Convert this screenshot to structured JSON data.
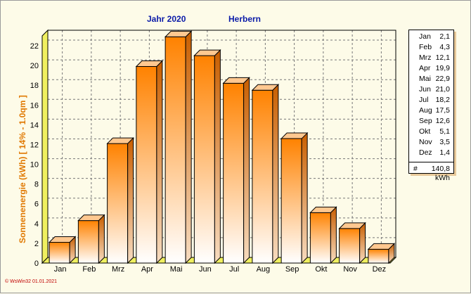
{
  "chart_data": {
    "type": "bar",
    "title": "Jahr  2020",
    "subtitle": "Herbern",
    "ylabel": "Sonnenenergie  (kWh)     [ 14% - 1.0qm ]",
    "categories": [
      "Jan",
      "Feb",
      "Mrz",
      "Apr",
      "Mai",
      "Jun",
      "Jul",
      "Aug",
      "Sep",
      "Okt",
      "Nov",
      "Dez"
    ],
    "values": [
      2.1,
      4.3,
      12.1,
      19.9,
      22.9,
      21.0,
      18.2,
      17.5,
      12.6,
      5.1,
      3.5,
      1.4
    ],
    "ylim": [
      0,
      23
    ],
    "yticks": [
      0,
      2,
      4,
      6,
      8,
      10,
      12,
      14,
      16,
      18,
      20,
      22
    ],
    "grid": true,
    "legend_placement": "right"
  },
  "legend": {
    "rows": [
      {
        "month": "Jan",
        "value": "2,1"
      },
      {
        "month": "Feb",
        "value": "4,3"
      },
      {
        "month": "Mrz",
        "value": "12,1"
      },
      {
        "month": "Apr",
        "value": "19,9"
      },
      {
        "month": "Mai",
        "value": "22,9"
      },
      {
        "month": "Jun",
        "value": "21,0"
      },
      {
        "month": "Jul",
        "value": "18,2"
      },
      {
        "month": "Aug",
        "value": "17,5"
      },
      {
        "month": "Sep",
        "value": "12,6"
      },
      {
        "month": "Okt",
        "value": "5,1"
      },
      {
        "month": "Nov",
        "value": "3,5"
      },
      {
        "month": "Dez",
        "value": "1,4"
      }
    ],
    "total_symbol": "#",
    "total_value": "140,8",
    "total_unit": "kWh"
  },
  "credit": "© WsWin32  01.01.2021",
  "colors": {
    "bar_top": "#ff8200",
    "bar_bottom": "#ffffff",
    "bar_side": "#c85e00",
    "bar_cap": "#ffc890",
    "floor": "#f0f060",
    "title": "#0a1aa8",
    "ylabel": "#e07800",
    "background": "#fdfbe8"
  }
}
